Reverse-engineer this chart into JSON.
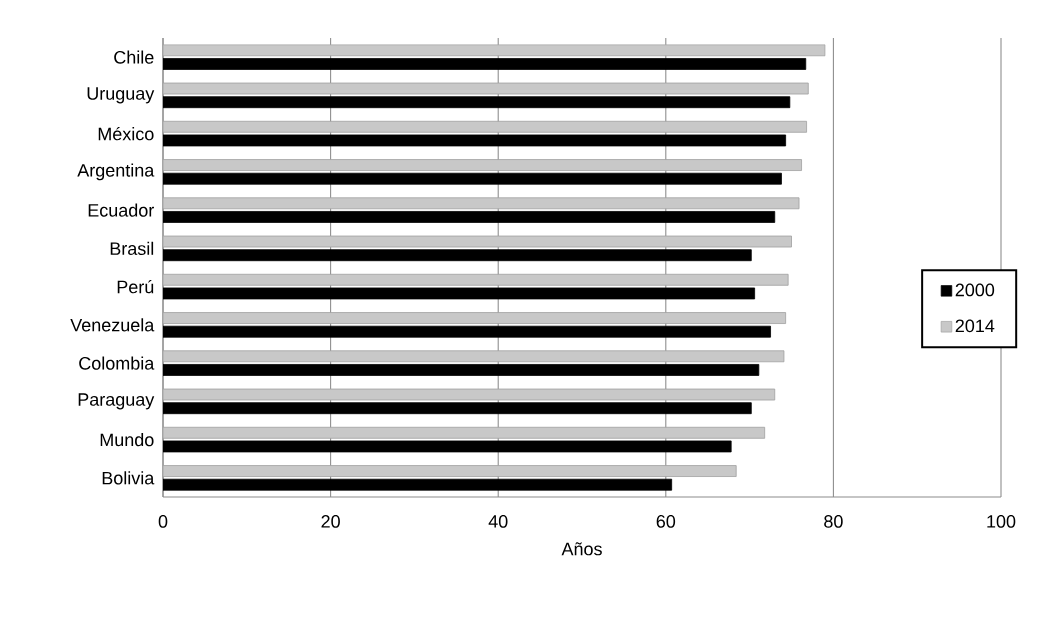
{
  "chart_data": {
    "type": "bar",
    "orientation": "horizontal",
    "xlabel": "Años",
    "categories": [
      "Chile",
      "Uruguay",
      "México",
      "Argentina",
      "Ecuador",
      "Brasil",
      "Perú",
      "Venezuela",
      "Colombia",
      "Paraguay",
      "Mundo",
      "Bolivia"
    ],
    "series": [
      {
        "name": "2000",
        "color": "#000000",
        "values": [
          76.7,
          74.8,
          74.3,
          73.8,
          73.0,
          70.2,
          70.6,
          72.5,
          71.1,
          70.2,
          67.8,
          60.7
        ]
      },
      {
        "name": "2014",
        "color": "#c8c8c8",
        "values": [
          79.0,
          77.0,
          76.8,
          76.2,
          75.9,
          75.0,
          74.6,
          74.3,
          74.1,
          73.0,
          71.8,
          68.4
        ]
      }
    ],
    "xlim": [
      0,
      100
    ],
    "xticks": [
      0,
      20,
      40,
      60,
      80,
      100
    ],
    "grid": "x",
    "legend": "right"
  }
}
